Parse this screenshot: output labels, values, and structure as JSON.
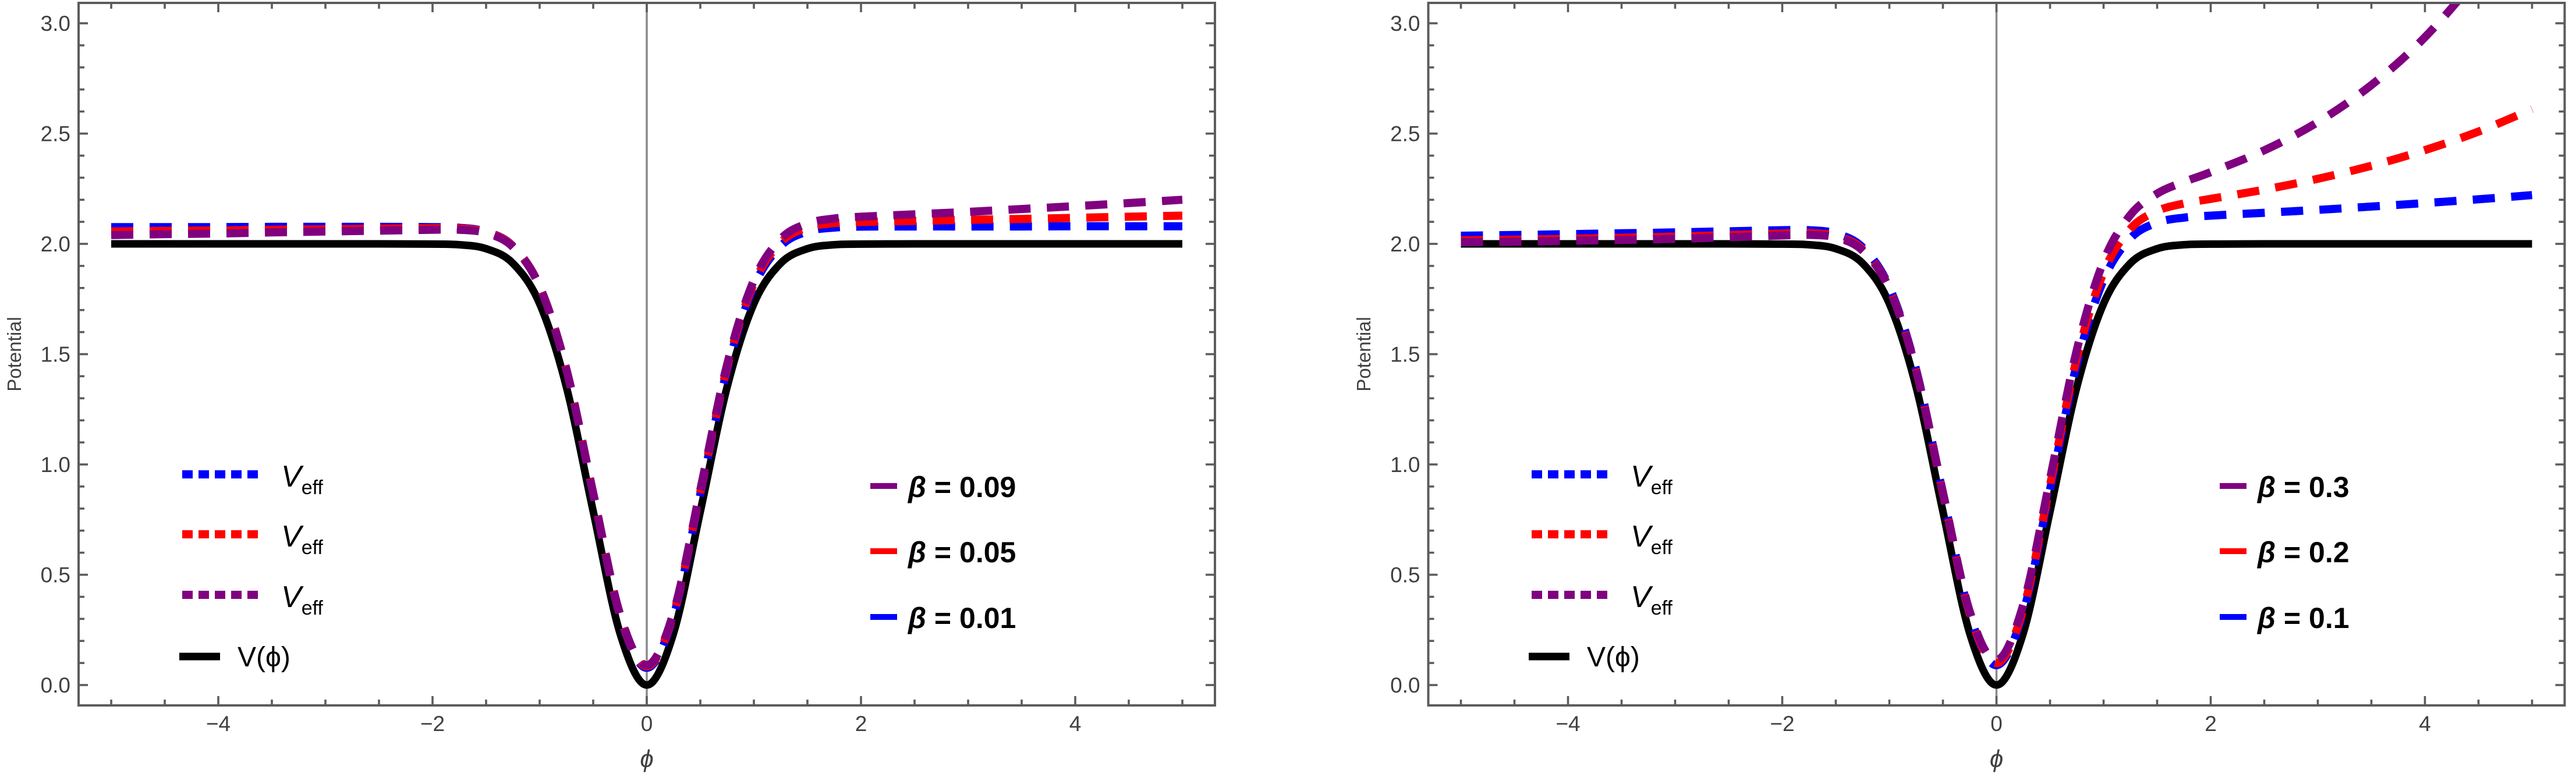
{
  "figure": {
    "background": "#ffffff",
    "frame_color": "#5c5c5c",
    "tick_label_color": "#404040",
    "gridline_color": "#8a8a8a"
  },
  "chart_data": [
    {
      "type": "line",
      "panel": "left",
      "xlabel": "ϕ",
      "ylabel": "Potential",
      "xlim": [
        -5.3,
        5.3
      ],
      "ylim": [
        -0.09,
        3.09
      ],
      "grid_x": [
        0
      ],
      "x_major_ticks": [
        -4,
        -2,
        0,
        2,
        4
      ],
      "x_tick_labels": [
        "−4",
        "−2",
        "0",
        "2",
        "4"
      ],
      "x_minor_step": 0.5,
      "y_major_ticks": [
        0,
        0.5,
        1,
        1.5,
        2,
        2.5,
        3
      ],
      "y_tick_labels": [
        "0.0",
        "0.5",
        "1.0",
        "1.5",
        "2.0",
        "2.5",
        "3.0"
      ],
      "y_minor_step": 0.1,
      "x": [
        -5,
        -4.5,
        -4,
        -3.5,
        -3,
        -2.5,
        -2,
        -1.75,
        -1.5,
        -1.25,
        -1,
        -0.75,
        -0.5,
        -0.25,
        0,
        0.25,
        0.5,
        0.75,
        1,
        1.25,
        1.5,
        1.75,
        2,
        2.5,
        3,
        3.5,
        4,
        4.5,
        5
      ],
      "series": [
        {
          "name": "V(ϕ)",
          "color": "#000000",
          "style": "solid",
          "width": 13,
          "values": [
            2,
            2,
            2,
            2,
            2,
            2,
            1.999,
            1.996,
            1.978,
            1.912,
            1.729,
            1.351,
            0.787,
            0.235,
            0,
            0.235,
            0.787,
            1.351,
            1.729,
            1.912,
            1.978,
            1.996,
            1.999,
            2,
            2,
            2,
            2,
            2,
            2
          ]
        },
        {
          "name": "V_eff (β = 0.01)",
          "color": "#0000ff",
          "style": "dashed",
          "width": 14,
          "values": [
            2.076,
            2.076,
            2.076,
            2.077,
            2.077,
            2.077,
            2.076,
            2.073,
            2.055,
            1.99,
            1.807,
            1.429,
            0.865,
            0.313,
            0.078,
            0.313,
            0.865,
            1.429,
            1.807,
            1.99,
            2.056,
            2.074,
            2.078,
            2.079,
            2.079,
            2.079,
            2.08,
            2.08,
            2.08
          ]
        },
        {
          "name": "V_eff (β = 0.05)",
          "color": "#ff0000",
          "style": "dashed",
          "width": 14,
          "values": [
            2.056,
            2.059,
            2.061,
            2.064,
            2.066,
            2.069,
            2.071,
            2.07,
            2.053,
            1.989,
            1.807,
            1.431,
            0.869,
            0.318,
            0.085,
            0.322,
            0.876,
            1.441,
            1.821,
            2.006,
            2.074,
            2.094,
            2.099,
            2.104,
            2.109,
            2.113,
            2.118,
            2.123,
            2.128
          ]
        },
        {
          "name": "V_eff (β = 0.09)",
          "color": "#800080",
          "style": "dashed",
          "width": 14,
          "values": [
            2.04,
            2.044,
            2.047,
            2.052,
            2.056,
            2.06,
            2.064,
            2.064,
            2.049,
            1.986,
            1.806,
            1.431,
            0.87,
            0.322,
            0.09,
            0.329,
            0.885,
            1.453,
            1.835,
            2.022,
            2.092,
            2.115,
            2.123,
            2.134,
            2.145,
            2.158,
            2.171,
            2.185,
            2.2
          ]
        }
      ],
      "line_legend": [
        {
          "main": "V",
          "sub": "eff",
          "color": "#0000ff",
          "dashed": true
        },
        {
          "main": "V",
          "sub": "eff",
          "color": "#ff0000",
          "dashed": true
        },
        {
          "main": "V",
          "sub": "eff",
          "color": "#800080",
          "dashed": true
        },
        {
          "main": "V(ϕ)",
          "sub": "",
          "color": "#000000",
          "dashed": false
        }
      ],
      "beta_legend": [
        {
          "label": "β = 0.09",
          "color": "#800080"
        },
        {
          "label": "β = 0.05",
          "color": "#ff0000"
        },
        {
          "label": "β = 0.01",
          "color": "#0000ff"
        }
      ]
    },
    {
      "type": "line",
      "panel": "right",
      "xlabel": "ϕ",
      "ylabel": "Potential",
      "xlim": [
        -5.3,
        5.3
      ],
      "ylim": [
        -0.09,
        3.09
      ],
      "grid_x": [
        0
      ],
      "x_major_ticks": [
        -4,
        -2,
        0,
        2,
        4
      ],
      "x_tick_labels": [
        "−4",
        "−2",
        "0",
        "2",
        "4"
      ],
      "x_minor_step": 0.5,
      "y_major_ticks": [
        0,
        0.5,
        1,
        1.5,
        2,
        2.5,
        3
      ],
      "y_tick_labels": [
        "0.0",
        "0.5",
        "1.0",
        "1.5",
        "2.0",
        "2.5",
        "3.0"
      ],
      "y_minor_step": 0.1,
      "x": [
        -5,
        -4.5,
        -4,
        -3.5,
        -3,
        -2.5,
        -2,
        -1.75,
        -1.5,
        -1.25,
        -1,
        -0.75,
        -0.5,
        -0.25,
        0,
        0.25,
        0.5,
        0.75,
        1,
        1.25,
        1.5,
        1.75,
        2,
        2.5,
        3,
        3.5,
        4,
        4.5,
        5
      ],
      "series": [
        {
          "name": "V(ϕ)",
          "color": "#000000",
          "style": "solid",
          "width": 13,
          "values": [
            2,
            2,
            2,
            2,
            2,
            2,
            1.999,
            1.996,
            1.978,
            1.912,
            1.729,
            1.351,
            0.787,
            0.235,
            0,
            0.235,
            0.787,
            1.351,
            1.729,
            1.912,
            1.978,
            1.996,
            1.999,
            2,
            2,
            2,
            2,
            2,
            2
          ]
        },
        {
          "name": "V_eff (β = 0.1)",
          "color": "#0000ff",
          "style": "dashed",
          "width": 14,
          "values": [
            2.037,
            2.04,
            2.044,
            2.048,
            2.052,
            2.057,
            2.062,
            2.062,
            2.047,
            1.984,
            1.804,
            1.43,
            0.869,
            0.321,
            0.09,
            0.329,
            0.886,
            1.454,
            1.837,
            2.025,
            2.096,
            2.119,
            2.128,
            2.141,
            2.154,
            2.169,
            2.185,
            2.202,
            2.221
          ]
        },
        {
          "name": "V_eff (β = 0.2)",
          "color": "#ff0000",
          "style": "dashed",
          "width": 14,
          "values": [
            2.016,
            2.019,
            2.023,
            2.028,
            2.033,
            2.04,
            2.047,
            2.049,
            2.035,
            1.975,
            1.798,
            1.426,
            0.869,
            0.325,
            0.099,
            0.343,
            0.906,
            1.481,
            1.871,
            2.068,
            2.149,
            2.183,
            2.204,
            2.246,
            2.295,
            2.354,
            2.425,
            2.509,
            2.611
          ]
        },
        {
          "name": "V_eff (β = 0.3)",
          "color": "#800080",
          "style": "dashed",
          "width": 14,
          "values": [
            2.008,
            2.01,
            2.014,
            2.018,
            2.023,
            2.03,
            2.038,
            2.041,
            2.029,
            1.97,
            1.796,
            1.427,
            0.874,
            0.334,
            0.113,
            0.364,
            0.934,
            1.519,
            1.921,
            2.131,
            2.228,
            2.281,
            2.325,
            2.424,
            2.552,
            2.72,
            2.937,
            3.221,
            3.591
          ]
        }
      ],
      "line_legend": [
        {
          "main": "V",
          "sub": "eff",
          "color": "#0000ff",
          "dashed": true
        },
        {
          "main": "V",
          "sub": "eff",
          "color": "#ff0000",
          "dashed": true
        },
        {
          "main": "V",
          "sub": "eff",
          "color": "#800080",
          "dashed": true
        },
        {
          "main": "V(ϕ)",
          "sub": "",
          "color": "#000000",
          "dashed": false
        }
      ],
      "beta_legend": [
        {
          "label": "β = 0.3",
          "color": "#800080"
        },
        {
          "label": "β = 0.2",
          "color": "#ff0000"
        },
        {
          "label": "β = 0.1",
          "color": "#0000ff"
        }
      ]
    }
  ]
}
